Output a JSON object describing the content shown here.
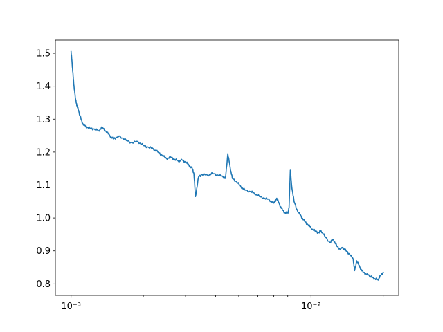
{
  "chart_data": {
    "type": "line",
    "title": "",
    "xlabel": "",
    "ylabel": "",
    "x_scale": "log",
    "xlim": [
      0.00086,
      0.0232
    ],
    "ylim": [
      0.765,
      1.54
    ],
    "grid": false,
    "legend": "none",
    "x_major_ticks": [
      {
        "value": 0.001,
        "label": "10⁻³"
      },
      {
        "value": 0.01,
        "label": "10⁻²"
      }
    ],
    "x_minor_ticks": [
      0.002,
      0.003,
      0.004,
      0.005,
      0.006,
      0.007,
      0.008,
      0.009,
      0.02
    ],
    "y_ticks": [
      {
        "value": 0.8,
        "label": "0.8"
      },
      {
        "value": 0.9,
        "label": "0.9"
      },
      {
        "value": 1.0,
        "label": "1.0"
      },
      {
        "value": 1.1,
        "label": "1.1"
      },
      {
        "value": 1.2,
        "label": "1.2"
      },
      {
        "value": 1.3,
        "label": "1.3"
      },
      {
        "value": 1.4,
        "label": "1.4"
      },
      {
        "value": 1.5,
        "label": "1.5"
      }
    ],
    "series": [
      {
        "color": "#1f77b4",
        "points": [
          [
            0.001,
            1.505
          ],
          [
            0.00101,
            1.47
          ],
          [
            0.00102,
            1.43
          ],
          [
            0.00103,
            1.395
          ],
          [
            0.00104,
            1.37
          ],
          [
            0.00105,
            1.35
          ],
          [
            0.00106,
            1.34
          ],
          [
            0.00108,
            1.32
          ],
          [
            0.0011,
            1.3
          ],
          [
            0.00112,
            1.285
          ],
          [
            0.00115,
            1.278
          ],
          [
            0.0012,
            1.272
          ],
          [
            0.00125,
            1.27
          ],
          [
            0.0013,
            1.265
          ],
          [
            0.00135,
            1.275
          ],
          [
            0.0014,
            1.262
          ],
          [
            0.00145,
            1.25
          ],
          [
            0.0015,
            1.24
          ],
          [
            0.00155,
            1.245
          ],
          [
            0.0016,
            1.248
          ],
          [
            0.0017,
            1.235
          ],
          [
            0.0018,
            1.228
          ],
          [
            0.0019,
            1.232
          ],
          [
            0.002,
            1.22
          ],
          [
            0.0021,
            1.215
          ],
          [
            0.0022,
            1.21
          ],
          [
            0.0023,
            1.2
          ],
          [
            0.0024,
            1.19
          ],
          [
            0.0025,
            1.18
          ],
          [
            0.0026,
            1.185
          ],
          [
            0.0027,
            1.178
          ],
          [
            0.0028,
            1.172
          ],
          [
            0.0029,
            1.176
          ],
          [
            0.003,
            1.17
          ],
          [
            0.0031,
            1.16
          ],
          [
            0.0032,
            1.15
          ],
          [
            0.00325,
            1.135
          ],
          [
            0.0033,
            1.065
          ],
          [
            0.0034,
            1.125
          ],
          [
            0.0035,
            1.132
          ],
          [
            0.0037,
            1.13
          ],
          [
            0.0039,
            1.135
          ],
          [
            0.0041,
            1.13
          ],
          [
            0.0043,
            1.125
          ],
          [
            0.0044,
            1.12
          ],
          [
            0.0045,
            1.195
          ],
          [
            0.0046,
            1.155
          ],
          [
            0.0047,
            1.12
          ],
          [
            0.0049,
            1.11
          ],
          [
            0.0051,
            1.095
          ],
          [
            0.0053,
            1.085
          ],
          [
            0.0056,
            1.08
          ],
          [
            0.0058,
            1.075
          ],
          [
            0.0061,
            1.065
          ],
          [
            0.0064,
            1.06
          ],
          [
            0.0067,
            1.055
          ],
          [
            0.007,
            1.045
          ],
          [
            0.0072,
            1.06
          ],
          [
            0.0074,
            1.04
          ],
          [
            0.0076,
            1.025
          ],
          [
            0.0078,
            1.015
          ],
          [
            0.008,
            1.015
          ],
          [
            0.0081,
            1.03
          ],
          [
            0.0082,
            1.145
          ],
          [
            0.0083,
            1.1
          ],
          [
            0.0085,
            1.05
          ],
          [
            0.0088,
            1.02
          ],
          [
            0.0091,
            1.005
          ],
          [
            0.0094,
            0.99
          ],
          [
            0.0097,
            0.98
          ],
          [
            0.01,
            0.97
          ],
          [
            0.0104,
            0.96
          ],
          [
            0.0108,
            0.955
          ],
          [
            0.011,
            0.962
          ],
          [
            0.0114,
            0.945
          ],
          [
            0.012,
            0.925
          ],
          [
            0.0124,
            0.935
          ],
          [
            0.0128,
            0.915
          ],
          [
            0.0132,
            0.905
          ],
          [
            0.0136,
            0.91
          ],
          [
            0.014,
            0.9
          ],
          [
            0.0145,
            0.89
          ],
          [
            0.015,
            0.875
          ],
          [
            0.0152,
            0.84
          ],
          [
            0.0155,
            0.87
          ],
          [
            0.016,
            0.85
          ],
          [
            0.0165,
            0.835
          ],
          [
            0.017,
            0.83
          ],
          [
            0.0175,
            0.825
          ],
          [
            0.018,
            0.82
          ],
          [
            0.0185,
            0.815
          ],
          [
            0.019,
            0.812
          ],
          [
            0.0195,
            0.825
          ],
          [
            0.02,
            0.835
          ]
        ]
      }
    ]
  }
}
